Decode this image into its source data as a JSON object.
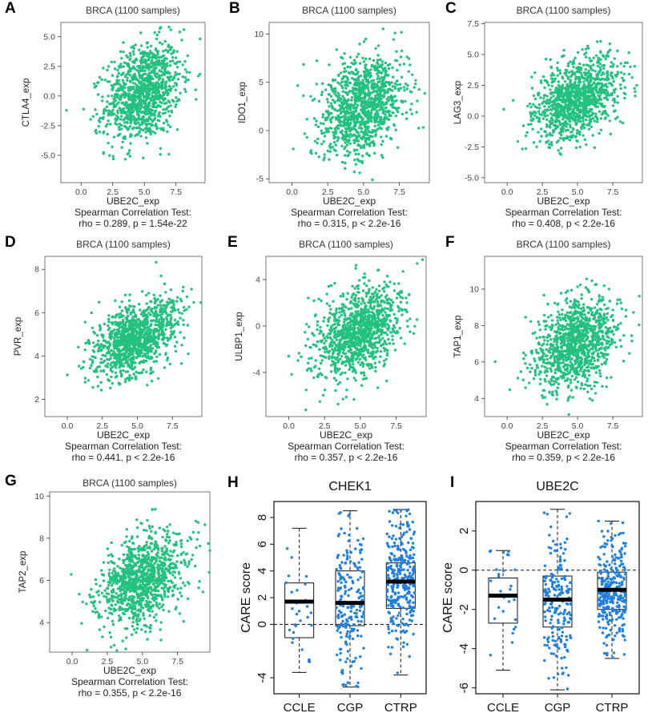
{
  "figure": {
    "panel_letters": [
      "A",
      "B",
      "C",
      "D",
      "E",
      "F",
      "G",
      "H",
      "I"
    ]
  },
  "colors": {
    "scatter": "#23c17f",
    "box_points": "#1e7fe0",
    "axis": "#333333",
    "frame": "#555555"
  },
  "chart_data": [
    {
      "id": "A",
      "type": "scatter",
      "title": "BRCA (1100 samples)",
      "xlabel": "UBE2C_exp",
      "ylabel": "CTLA4_exp",
      "stat_title": "Spearman Correlation Test:",
      "stat": "rho = 0.289, p = 1.54e-22",
      "n": 1100,
      "rho": 0.289,
      "xlim": [
        -1.6,
        9.8
      ],
      "ylim": [
        -7.3,
        6.2
      ],
      "xticks": [
        "0.0",
        "2.5",
        "5.0",
        "7.5"
      ],
      "xtick_values": [
        0,
        2.5,
        5,
        7.5
      ],
      "yticks": [
        "5.0",
        "2.5",
        "0.0",
        "-2.5",
        "-5.0"
      ],
      "ytick_values": [
        5,
        2.5,
        0,
        -2.5,
        -5
      ],
      "x_mean": 4.9,
      "x_sd": 1.5,
      "y_mean": 0.3,
      "y_sd": 2.1
    },
    {
      "id": "B",
      "type": "scatter",
      "title": "BRCA (1100 samples)",
      "xlabel": "UBE2C_exp",
      "ylabel": "IDO1_exp",
      "stat_title": "Spearman Correlation Test:",
      "stat": "rho = 0.315, p < 2.2e-16",
      "n": 1100,
      "rho": 0.315,
      "xlim": [
        -1.6,
        9.6
      ],
      "ylim": [
        -5.4,
        11.2
      ],
      "xticks": [
        "0.0",
        "2.5",
        "5.0",
        "7.5"
      ],
      "xtick_values": [
        0,
        2.5,
        5,
        7.5
      ],
      "yticks": [
        "10",
        "5",
        "0",
        "-5"
      ],
      "ytick_values": [
        10,
        5,
        0,
        -5
      ],
      "x_mean": 4.9,
      "x_sd": 1.5,
      "y_mean": 2.5,
      "y_sd": 2.6
    },
    {
      "id": "C",
      "type": "scatter",
      "title": "BRCA (1100 samples)",
      "xlabel": "UBE2C_exp",
      "ylabel": "LAG3_exp",
      "stat_title": "Spearman Correlation Test:",
      "stat": "rho = 0.408, p < 2.2e-16",
      "n": 1100,
      "rho": 0.408,
      "xlim": [
        -1.6,
        9.6
      ],
      "ylim": [
        -5.4,
        7.6
      ],
      "xticks": [
        "0.0",
        "2.5",
        "5.0",
        "7.5"
      ],
      "xtick_values": [
        0,
        2.5,
        5,
        7.5
      ],
      "yticks": [
        "7.5",
        "5.0",
        "2.5",
        "0.0",
        "-2.5",
        "-5.0"
      ],
      "ytick_values": [
        7.5,
        5,
        2.5,
        0,
        -2.5,
        -5
      ],
      "x_mean": 4.9,
      "x_sd": 1.5,
      "y_mean": 1.3,
      "y_sd": 1.7
    },
    {
      "id": "D",
      "type": "scatter",
      "title": "BRCA (1100 samples)",
      "xlabel": "UBE2C_exp",
      "ylabel": "PVR_exp",
      "stat_title": "Spearman Correlation Test:",
      "stat": "rho = 0.441, p < 2.2e-16",
      "n": 1100,
      "rho": 0.441,
      "xlim": [
        -1.6,
        9.6
      ],
      "ylim": [
        1.2,
        8.6
      ],
      "xticks": [
        "0.0",
        "2.5",
        "5.0",
        "7.5"
      ],
      "xtick_values": [
        0,
        2.5,
        5,
        7.5
      ],
      "yticks": [
        "8",
        "6",
        "4",
        "2"
      ],
      "ytick_values": [
        8,
        6,
        4,
        2
      ],
      "x_mean": 4.9,
      "x_sd": 1.5,
      "y_mean": 4.8,
      "y_sd": 0.9
    },
    {
      "id": "E",
      "type": "scatter",
      "title": "BRCA (1100 samples)",
      "xlabel": "UBE2C_exp",
      "ylabel": "ULBP1_exp",
      "stat_title": "Spearman Correlation Test:",
      "stat": "rho = 0.357, p < 2.2e-16",
      "n": 1100,
      "rho": 0.357,
      "xlim": [
        -1.6,
        9.6
      ],
      "ylim": [
        -7.8,
        6.0
      ],
      "xticks": [
        "0.0",
        "2.5",
        "5.0",
        "7.5"
      ],
      "xtick_values": [
        0,
        2.5,
        5,
        7.5
      ],
      "yticks": [
        "4",
        "0",
        "-4"
      ],
      "ytick_values": [
        4,
        0,
        -4
      ],
      "x_mean": 4.9,
      "x_sd": 1.5,
      "y_mean": -0.4,
      "y_sd": 2.0
    },
    {
      "id": "F",
      "type": "scatter",
      "title": "BRCA (1100 samples)",
      "xlabel": "UBE2C_exp",
      "ylabel": "TAP1_exp",
      "stat_title": "Spearman Correlation Test:",
      "stat": "rho = 0.359, p < 2.2e-16",
      "n": 1100,
      "rho": 0.359,
      "xlim": [
        -1.6,
        9.6
      ],
      "ylim": [
        3.0,
        11.8
      ],
      "xticks": [
        "0.0",
        "2.5",
        "5.0",
        "7.5"
      ],
      "xtick_values": [
        0,
        2.5,
        5,
        7.5
      ],
      "yticks": [
        "10",
        "8",
        "6",
        "4"
      ],
      "ytick_values": [
        10,
        8,
        6,
        4
      ],
      "x_mean": 4.9,
      "x_sd": 1.5,
      "y_mean": 7.0,
      "y_sd": 1.3
    },
    {
      "id": "G",
      "type": "scatter",
      "title": "BRCA (1100 samples)",
      "xlabel": "UBE2C_exp",
      "ylabel": "TAP2_exp",
      "stat_title": "Spearman Correlation Test:",
      "stat": "rho = 0.355, p < 2.2e-16",
      "n": 1100,
      "rho": 0.355,
      "xlim": [
        -1.6,
        9.8
      ],
      "ylim": [
        2.6,
        10.2
      ],
      "xticks": [
        "0.0",
        "2.5",
        "5.0",
        "7.5"
      ],
      "xtick_values": [
        0,
        2.5,
        5,
        7.5
      ],
      "yticks": [
        "10",
        "8",
        "6",
        "4"
      ],
      "ytick_values": [
        10,
        8,
        6,
        4
      ],
      "x_mean": 4.9,
      "x_sd": 1.5,
      "y_mean": 6.0,
      "y_sd": 1.1
    },
    {
      "id": "H",
      "type": "box",
      "title": "CHEK1",
      "ylabel": "CARE score",
      "ylim": [
        -5.2,
        9.2
      ],
      "yticks": [
        "8",
        "6",
        "4",
        "2",
        "0",
        "-4"
      ],
      "ytick_values": [
        8,
        6,
        4,
        2,
        0,
        -4
      ],
      "reference_line": 0,
      "categories": [
        "CCLE",
        "CGP",
        "CTRP"
      ],
      "boxes": [
        {
          "name": "CCLE",
          "whisker_low": -3.6,
          "q1": -1.0,
          "median": 1.7,
          "q3": 3.1,
          "whisker_high": 7.2,
          "n_points": 28
        },
        {
          "name": "CGP",
          "whisker_low": -4.7,
          "q1": -0.1,
          "median": 1.6,
          "q3": 4.0,
          "whisker_high": 8.5,
          "n_points": 200
        },
        {
          "name": "CTRP",
          "whisker_low": -3.8,
          "q1": 1.2,
          "median": 3.2,
          "q3": 4.6,
          "whisker_high": 8.6,
          "n_points": 300
        }
      ]
    },
    {
      "id": "I",
      "type": "box",
      "title": "UBE2C",
      "ylabel": "CARE score",
      "ylim": [
        -6.3,
        3.5
      ],
      "yticks": [
        "2",
        "0",
        "-2",
        "-4",
        "-6"
      ],
      "ytick_values": [
        2,
        0,
        -2,
        -4,
        -6
      ],
      "reference_line": 0,
      "categories": [
        "CCLE",
        "CGP",
        "CTRP"
      ],
      "boxes": [
        {
          "name": "CCLE",
          "whisker_low": -5.1,
          "q1": -2.7,
          "median": -1.3,
          "q3": -0.4,
          "whisker_high": 1.0,
          "n_points": 28
        },
        {
          "name": "CGP",
          "whisker_low": -6.1,
          "q1": -2.9,
          "median": -1.5,
          "q3": -0.3,
          "whisker_high": 3.1,
          "n_points": 200
        },
        {
          "name": "CTRP",
          "whisker_low": -4.5,
          "q1": -2.0,
          "median": -1.0,
          "q3": -0.1,
          "whisker_high": 2.5,
          "n_points": 300
        }
      ]
    }
  ]
}
